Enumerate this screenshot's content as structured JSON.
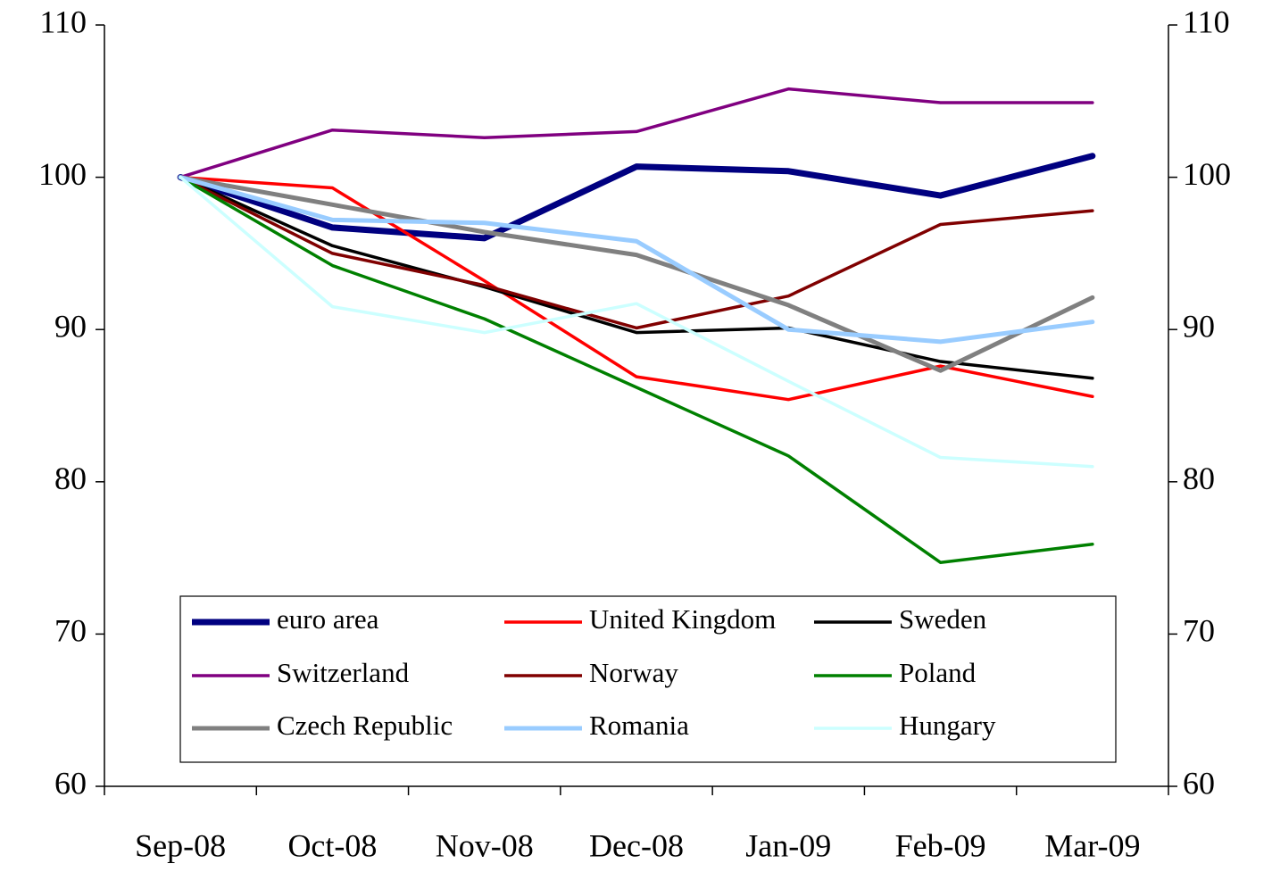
{
  "chart_data": {
    "type": "line",
    "categories": [
      "Sep-08",
      "Oct-08",
      "Nov-08",
      "Dec-08",
      "Jan-09",
      "Feb-09",
      "Mar-09"
    ],
    "series": [
      {
        "name": "euro area",
        "color": "#000080",
        "line_width": 7,
        "values": [
          100,
          96.7,
          96.0,
          100.7,
          100.4,
          98.8,
          101.4
        ]
      },
      {
        "name": "United Kingdom",
        "color": "#ff0000",
        "line_width": 3.5,
        "values": [
          100,
          99.3,
          93.2,
          86.9,
          85.4,
          87.6,
          85.6
        ]
      },
      {
        "name": "Sweden",
        "color": "#000000",
        "line_width": 3.5,
        "values": [
          100,
          95.5,
          92.8,
          89.8,
          90.1,
          87.9,
          86.8
        ]
      },
      {
        "name": "Switzerland",
        "color": "#800080",
        "line_width": 3.5,
        "values": [
          100,
          103.1,
          102.6,
          103.0,
          105.8,
          104.9,
          104.9
        ]
      },
      {
        "name": "Norway",
        "color": "#800000",
        "line_width": 3.5,
        "values": [
          100,
          95.0,
          92.9,
          90.1,
          92.2,
          96.9,
          97.8
        ]
      },
      {
        "name": "Poland",
        "color": "#008000",
        "line_width": 3.5,
        "values": [
          100,
          94.2,
          90.7,
          86.2,
          81.7,
          74.7,
          75.9
        ]
      },
      {
        "name": "Czech Republic",
        "color": "#808080",
        "line_width": 5,
        "values": [
          100,
          98.2,
          96.4,
          94.9,
          91.6,
          87.3,
          92.1
        ]
      },
      {
        "name": "Romania",
        "color": "#99ccff",
        "line_width": 5,
        "values": [
          100,
          97.2,
          97.0,
          95.8,
          90.0,
          89.2,
          90.5
        ]
      },
      {
        "name": "Hungary",
        "color": "#ccffff",
        "line_width": 3.5,
        "values": [
          100,
          91.5,
          89.8,
          91.7,
          86.6,
          81.6,
          81.0
        ]
      }
    ],
    "ylim": [
      60,
      110
    ],
    "yticks": [
      60,
      70,
      80,
      90,
      100,
      110
    ],
    "y2lim": [
      60,
      110
    ],
    "y2ticks": [
      60,
      70,
      80,
      90,
      100,
      110
    ],
    "grid": false,
    "legend": "bottom"
  }
}
